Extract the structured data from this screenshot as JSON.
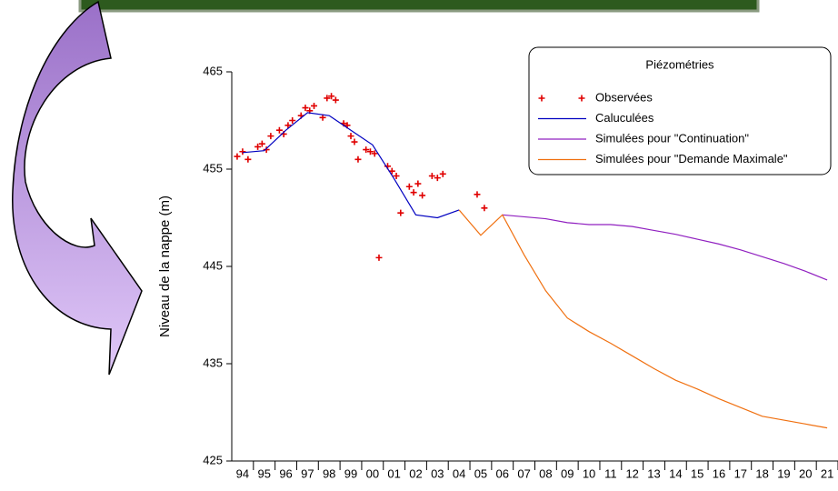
{
  "chart_data": {
    "type": "line",
    "legend_title": "Piézométries",
    "ylabel": "Niveau de la nappe (m)",
    "ylim": [
      425,
      465
    ],
    "yticks": [
      425,
      435,
      445,
      455,
      465
    ],
    "categories": [
      "94",
      "95",
      "96",
      "97",
      "98",
      "99",
      "00",
      "01",
      "02",
      "03",
      "04",
      "05",
      "06",
      "07",
      "08",
      "09",
      "10",
      "11",
      "12",
      "13",
      "14",
      "15",
      "16",
      "17",
      "18",
      "19",
      "20",
      "21"
    ],
    "series": [
      {
        "name": "Observées",
        "type": "scatter",
        "color": "#e00000",
        "x": [
          "94",
          "94",
          "94",
          "95",
          "95",
          "95",
          "95",
          "96",
          "96",
          "96",
          "96",
          "97",
          "97",
          "97",
          "97",
          "98",
          "98",
          "98",
          "98",
          "99",
          "99",
          "99",
          "99",
          "99",
          "00",
          "00",
          "00",
          "00",
          "01",
          "01",
          "01",
          "01",
          "02",
          "02",
          "02",
          "02",
          "03",
          "03",
          "03",
          "05",
          "05"
        ],
        "values": [
          456.3,
          456.8,
          456.0,
          457.3,
          457.6,
          457.0,
          458.4,
          459.0,
          458.6,
          459.5,
          460.0,
          460.5,
          461.3,
          461.0,
          461.5,
          460.3,
          462.3,
          462.5,
          462.1,
          459.7,
          459.5,
          458.4,
          457.8,
          456.0,
          457.0,
          456.8,
          456.6,
          445.9,
          455.3,
          454.8,
          454.3,
          450.5,
          453.2,
          452.6,
          453.5,
          452.3,
          454.3,
          454.1,
          454.5,
          452.4,
          451.0
        ]
      },
      {
        "name": "Caluculées",
        "color": "#0000c0",
        "values": [
          456.7,
          456.9,
          459.0,
          460.8,
          460.5,
          459.0,
          457.5,
          454.0,
          450.3,
          450.0,
          450.8,
          null,
          null,
          null,
          null,
          null,
          null,
          null,
          null,
          null,
          null,
          null,
          null,
          null,
          null,
          null,
          null,
          null
        ]
      },
      {
        "name": "Simulées pour \"Continuation\"",
        "color": "#9020c0",
        "values": [
          null,
          null,
          null,
          null,
          null,
          null,
          null,
          null,
          null,
          null,
          null,
          null,
          450.3,
          450.1,
          449.9,
          449.5,
          449.3,
          449.3,
          449.1,
          448.7,
          448.3,
          447.8,
          447.3,
          446.7,
          446.0,
          445.3,
          444.5,
          443.6
        ]
      },
      {
        "name": "Simulées pour \"Demande Maximale\"",
        "color": "#f07010",
        "values": [
          null,
          null,
          null,
          null,
          null,
          null,
          null,
          null,
          null,
          null,
          450.8,
          448.2,
          450.3,
          446.2,
          442.5,
          439.7,
          438.3,
          437.1,
          435.8,
          434.5,
          433.3,
          432.4,
          431.4,
          430.5,
          429.6,
          429.2,
          428.8,
          428.4
        ]
      }
    ]
  }
}
